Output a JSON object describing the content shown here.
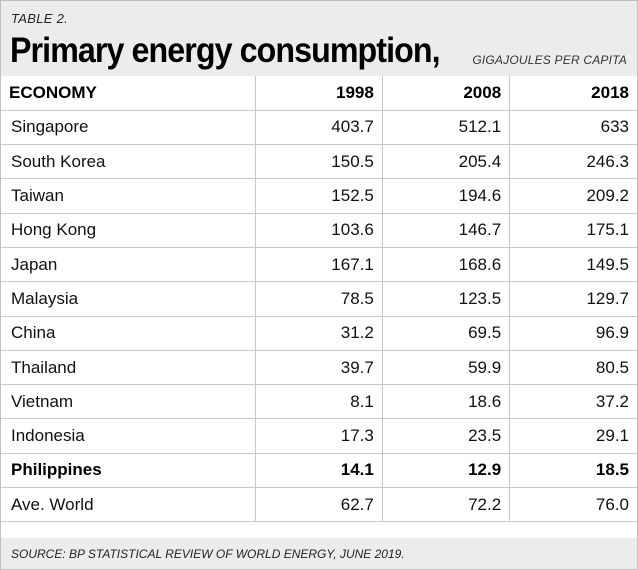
{
  "header": {
    "table_label": "TABLE 2.",
    "title": "Primary energy consumption,",
    "units": "GIGAJOULES PER CAPITA"
  },
  "table": {
    "columns": [
      "ECONOMY",
      "1998",
      "2008",
      "2018"
    ],
    "rows": [
      {
        "economy": "Singapore",
        "y1998": "403.7",
        "y2008": "512.1",
        "y2018": "633"
      },
      {
        "economy": "South Korea",
        "y1998": "150.5",
        "y2008": "205.4",
        "y2018": "246.3"
      },
      {
        "economy": "Taiwan",
        "y1998": "152.5",
        "y2008": "194.6",
        "y2018": "209.2"
      },
      {
        "economy": "Hong Kong",
        "y1998": "103.6",
        "y2008": "146.7",
        "y2018": "175.1"
      },
      {
        "economy": "Japan",
        "y1998": "167.1",
        "y2008": "168.6",
        "y2018": "149.5"
      },
      {
        "economy": "Malaysia",
        "y1998": "78.5",
        "y2008": "123.5",
        "y2018": "129.7"
      },
      {
        "economy": "China",
        "y1998": "31.2",
        "y2008": "69.5",
        "y2018": "96.9"
      },
      {
        "economy": "Thailand",
        "y1998": "39.7",
        "y2008": "59.9",
        "y2018": "80.5"
      },
      {
        "economy": "Vietnam",
        "y1998": "8.1",
        "y2008": "18.6",
        "y2018": "37.2"
      },
      {
        "economy": "Indonesia",
        "y1998": "17.3",
        "y2008": "23.5",
        "y2018": "29.1"
      },
      {
        "economy": "Philippines",
        "y1998": "14.1",
        "y2008": "12.9",
        "y2018": "18.5"
      },
      {
        "economy": "Ave. World",
        "y1998": "62.7",
        "y2008": "72.2",
        "y2018": "76.0"
      }
    ]
  },
  "footer": {
    "source": "SOURCE: BP STATISTICAL REVIEW OF WORLD ENERGY, JUNE 2019."
  }
}
